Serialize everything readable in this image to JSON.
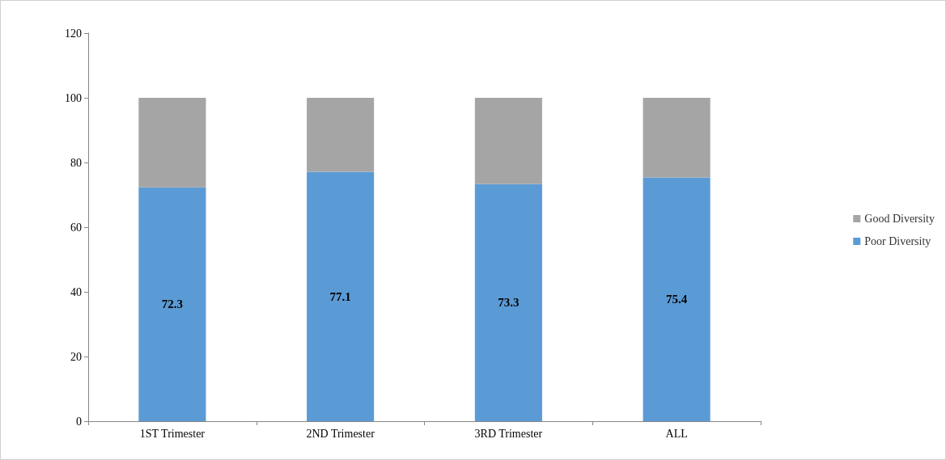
{
  "chart_data": {
    "type": "bar",
    "stacked": true,
    "categories": [
      "1ST Trimester",
      "2ND Trimester",
      "3RD Trimester",
      "ALL"
    ],
    "series": [
      {
        "name": "Poor Diversity",
        "color": "#5b9bd5",
        "values": [
          72.3,
          77.1,
          73.3,
          75.4
        ],
        "value_labels": [
          "72.3",
          "77.1",
          "73.3",
          "75.4"
        ]
      },
      {
        "name": "Good Diversity",
        "color": "#a5a5a5",
        "values": [
          27.7,
          22.9,
          26.7,
          24.6
        ]
      }
    ],
    "ylim": [
      0,
      120
    ],
    "yticks": [
      0,
      20,
      40,
      60,
      80,
      100,
      120
    ],
    "grid": false,
    "legend": "right"
  }
}
